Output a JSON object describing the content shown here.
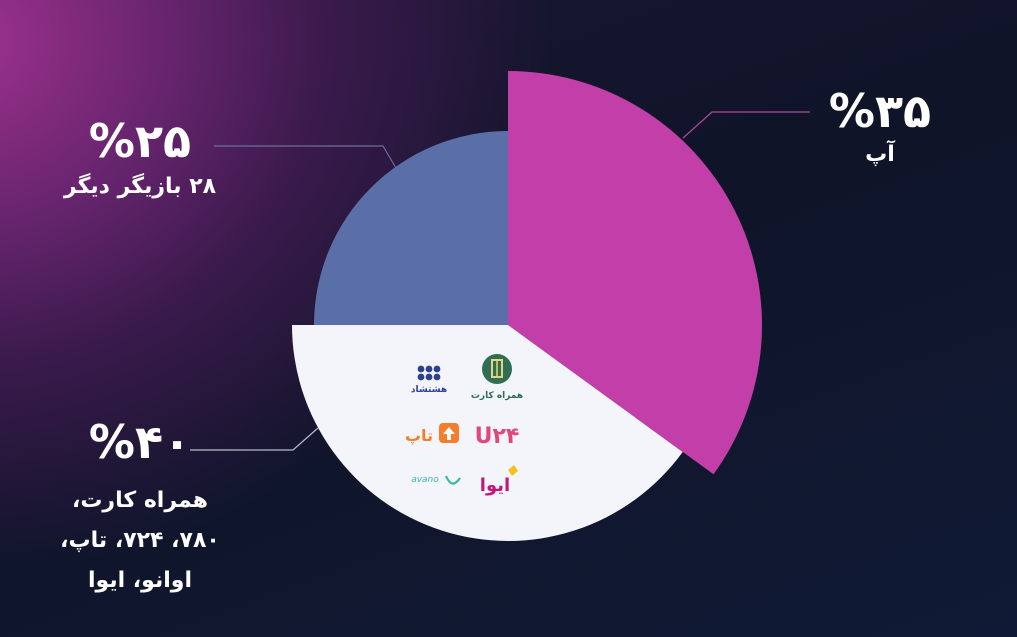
{
  "chart_data": {
    "type": "pie",
    "slices": [
      {
        "name": "آپ",
        "value": 35,
        "label": "%۳۵",
        "color": "#c23ea8"
      },
      {
        "name": "همراه کارت، ۷۸۰، ۷۲۴، تاپ، اوانو، ایوا",
        "value": 40,
        "label": "%۴۰",
        "color": "#f3f5fa"
      },
      {
        "name": "۲۸ بازیگر دیگر",
        "value": 25,
        "label": "%۲۵",
        "color": "#5a6fa8"
      }
    ]
  },
  "labels": {
    "app": {
      "pct": "%۳۵",
      "desc": "آپ"
    },
    "other": {
      "pct": "%۲۵",
      "desc": "۲۸ بازیگر دیگر"
    },
    "group": {
      "pct": "%۴۰",
      "desc_lines": [
        "همراه کارت،",
        "۷۸۰، ۷۲۴، تاپ،",
        "اوانو، ایوا"
      ]
    }
  },
  "logos": {
    "hamrah_card": "همراه کارت",
    "hasht_shad": "هشتشاد",
    "u24": "U۲۴",
    "tap": "تاپ",
    "iva": "ایوا",
    "avano": "avano"
  }
}
